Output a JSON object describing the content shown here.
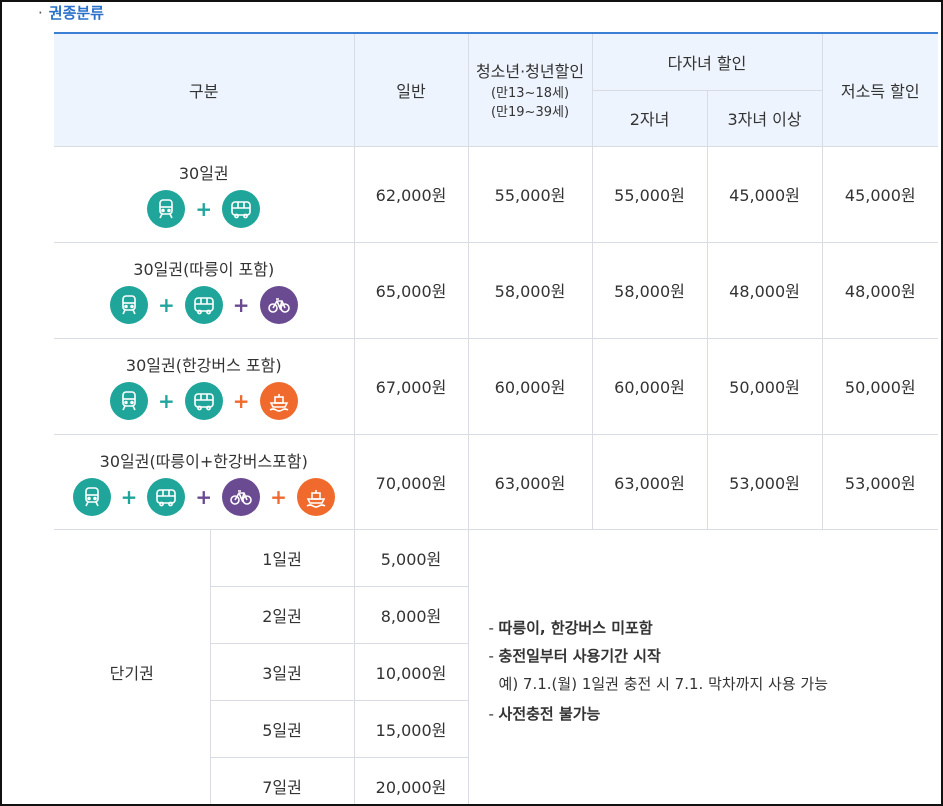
{
  "section": {
    "bullet": "·",
    "title": "권종분류"
  },
  "header": {
    "category": "구분",
    "general": "일반",
    "youth": "청소년·청년할인",
    "youth_sub1": "(만13~18세)",
    "youth_sub2": "(만19~39세)",
    "multi_child": "다자녀 할인",
    "two_children": "2자녀",
    "three_children": "3자녀 이상",
    "low_income": "저소득 할인"
  },
  "rows": [
    {
      "name": "30일권",
      "general": "62,000원",
      "youth": "55,000원",
      "two": "55,000원",
      "three": "45,000원",
      "low": "45,000원",
      "icons": [
        "subway-icon",
        "bus-icon"
      ]
    },
    {
      "name": "30일권(따릉이 포함)",
      "general": "65,000원",
      "youth": "58,000원",
      "two": "58,000원",
      "three": "48,000원",
      "low": "48,000원",
      "icons": [
        "subway-icon",
        "bus-icon",
        "bicycle-icon"
      ]
    },
    {
      "name": "30일권(한강버스 포함)",
      "general": "67,000원",
      "youth": "60,000원",
      "two": "60,000원",
      "three": "50,000원",
      "low": "50,000원",
      "icons": [
        "subway-icon",
        "bus-icon",
        "ferry-icon"
      ]
    },
    {
      "name": "30일권(따릉이+한강버스포함)",
      "general": "70,000원",
      "youth": "63,000원",
      "two": "63,000원",
      "three": "53,000원",
      "low": "53,000원",
      "icons": [
        "subway-icon",
        "bus-icon",
        "bicycle-icon",
        "ferry-icon"
      ]
    }
  ],
  "short_term": {
    "label": "단기권",
    "items": [
      {
        "name": "1일권",
        "price": "5,000원"
      },
      {
        "name": "2일권",
        "price": "8,000원"
      },
      {
        "name": "3일권",
        "price": "10,000원"
      },
      {
        "name": "5일권",
        "price": "15,000원"
      },
      {
        "name": "7일권",
        "price": "20,000원"
      }
    ],
    "notes": {
      "n1": "따릉이, 한강버스 미포함",
      "n2": "충전일부터 사용기간 시작",
      "n2_example": "예) 7.1.(월) 1일권 충전 시 7.1. 막차까지 사용 가능",
      "n3": "사전충전 불가능"
    }
  },
  "plus_sign": "+",
  "colors": {
    "teal": "#1fa59a",
    "purple": "#6a4a91",
    "orange": "#ef6a2c",
    "header_bg": "#eef4fd",
    "accent_blue": "#3b7fd4"
  }
}
